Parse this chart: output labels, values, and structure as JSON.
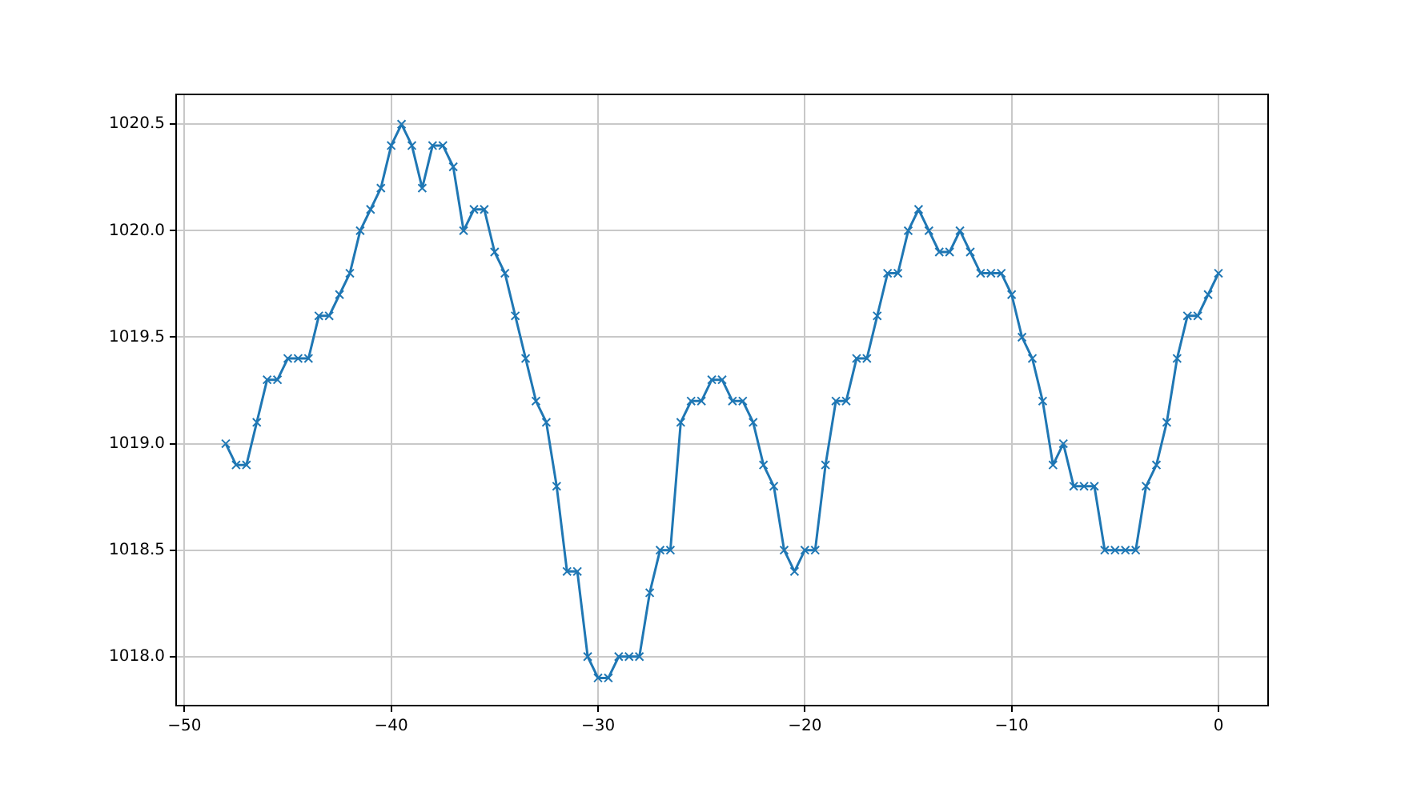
{
  "chart_data": {
    "type": "line",
    "x": [
      -48,
      -47.5,
      -47,
      -46.5,
      -46,
      -45.5,
      -45,
      -44.5,
      -44,
      -43.5,
      -43,
      -42.5,
      -42,
      -41.5,
      -41,
      -40.5,
      -40,
      -39.5,
      -39,
      -38.5,
      -38,
      -37.5,
      -37,
      -36.5,
      -36,
      -35.5,
      -35,
      -34.5,
      -34,
      -33.5,
      -33,
      -32.5,
      -32,
      -31.5,
      -31,
      -30.5,
      -30,
      -29.5,
      -29,
      -28.5,
      -28,
      -27.5,
      -27,
      -26.5,
      -26,
      -25.5,
      -25,
      -24.5,
      -24,
      -23.5,
      -23,
      -22.5,
      -22,
      -21.5,
      -21,
      -20.5,
      -20,
      -19.5,
      -19,
      -18.5,
      -18,
      -17.5,
      -17,
      -16.5,
      -16,
      -15.5,
      -15,
      -14.5,
      -14,
      -13.5,
      -13,
      -12.5,
      -12,
      -11.5,
      -11,
      -10.5,
      -10,
      -9.5,
      -9,
      -8.5,
      -8,
      -7.5,
      -7,
      -6.5,
      -6,
      -5.5,
      -5,
      -4.5,
      -4,
      -3.5,
      -3,
      -2.5,
      -2,
      -1.5,
      -1,
      -0.5,
      0
    ],
    "series": [
      {
        "color": "#1f77b4",
        "values": [
          1019.0,
          1018.9,
          1018.9,
          1019.1,
          1019.3,
          1019.3,
          1019.4,
          1019.4,
          1019.4,
          1019.6,
          1019.6,
          1019.7,
          1019.8,
          1020.0,
          1020.1,
          1020.2,
          1020.4,
          1020.5,
          1020.4,
          1020.2,
          1020.4,
          1020.4,
          1020.3,
          1020.0,
          1020.1,
          1020.1,
          1019.9,
          1019.8,
          1019.6,
          1019.4,
          1019.2,
          1019.1,
          1018.8,
          1018.4,
          1018.4,
          1018.0,
          1017.9,
          1017.9,
          1018.0,
          1018.0,
          1018.0,
          1018.3,
          1018.5,
          1018.5,
          1019.1,
          1019.2,
          1019.2,
          1019.3,
          1019.3,
          1019.2,
          1019.2,
          1019.1,
          1018.9,
          1018.8,
          1018.5,
          1018.4,
          1018.5,
          1018.5,
          1018.9,
          1019.2,
          1019.2,
          1019.4,
          1019.4,
          1019.6,
          1019.8,
          1019.8,
          1020.0,
          1020.1,
          1020.0,
          1019.9,
          1019.9,
          1020.0,
          1019.9,
          1019.8,
          1019.8,
          1019.8,
          1019.7,
          1019.5,
          1019.4,
          1019.2,
          1018.9,
          1019.0,
          1018.8,
          1018.8,
          1018.8,
          1018.5,
          1018.5,
          1018.5,
          1018.5,
          1018.8,
          1018.9,
          1019.1,
          1019.4,
          1019.6,
          1019.6,
          1019.7,
          1019.8
        ]
      }
    ],
    "xlim": [
      -50.4,
      2.4
    ],
    "ylim": [
      1017.77,
      1020.64
    ],
    "xticks": [
      {
        "value": -50,
        "label": "−50"
      },
      {
        "value": -40,
        "label": "−40"
      },
      {
        "value": -30,
        "label": "−30"
      },
      {
        "value": -20,
        "label": "−20"
      },
      {
        "value": -10,
        "label": "−10"
      },
      0
    ],
    "yticks": [
      {
        "value": 1018,
        "label": "1018.0"
      },
      1018.5,
      {
        "value": 1019,
        "label": "1019.0"
      },
      1019.5,
      {
        "value": 1020,
        "label": "1020.0"
      },
      1020.5
    ],
    "grid": true,
    "marker": "cross",
    "line_style": "solid"
  }
}
